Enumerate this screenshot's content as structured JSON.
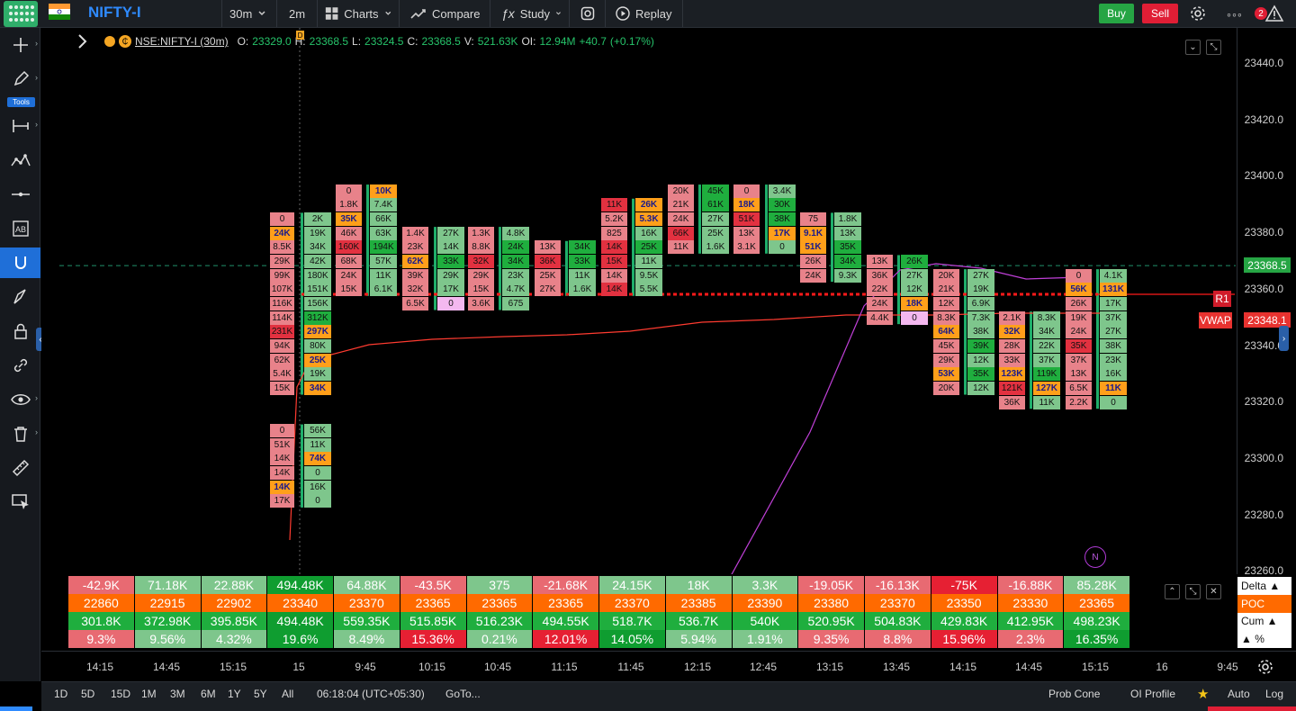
{
  "topbar": {
    "symbol": "NIFTY-I",
    "timeframe": "30m",
    "interval2": "2m",
    "charts_label": "Charts",
    "compare_label": "Compare",
    "study_label": "Study",
    "replay_label": "Replay",
    "buy_label": "Buy",
    "sell_label": "Sell",
    "alert_count": "2"
  },
  "leftbar": {
    "tools_label": "Tools"
  },
  "legend": {
    "symbol": "NSE:NIFTY-I (30m)",
    "o_label": "O:",
    "o_val": "23329.0",
    "h_label": "H:",
    "h_val": "23368.5",
    "l_label": "L:",
    "l_val": "23324.5",
    "c_label": "C:",
    "c_val": "23368.5",
    "v_label": "V:",
    "v_val": "521.63K",
    "oi_label": "OI:",
    "oi_val": "12.94M",
    "chg": "+40.7",
    "chg_pct": "(+0.17%)",
    "d_marker": "D"
  },
  "price_axis": {
    "ticks": [
      "23440.0",
      "23420.0",
      "23400.0",
      "23380.0",
      "23360.0",
      "23340.0",
      "23320.0",
      "23300.0",
      "23280.0",
      "23260.0"
    ],
    "last_price": "23368.5",
    "vwap_price": "23348.1",
    "vwap_label": "VWAP",
    "r1_label": "R1",
    "n_marker": "N",
    "colors": {
      "last": "#26a544",
      "vwap": "#e8322f",
      "up": "#26a544",
      "down": "#e8322f"
    }
  },
  "footprint": [
    {
      "lo": 23325,
      "cells": [
        [
          "0",
          "r"
        ],
        [
          "24K",
          "o"
        ],
        [
          "8.5K",
          "r"
        ],
        [
          "29K",
          "r"
        ],
        [
          "99K",
          "r"
        ],
        [
          "107K",
          "r"
        ],
        [
          "116K",
          "r"
        ],
        [
          "114K",
          "r"
        ],
        [
          "231K",
          "R"
        ],
        [
          "94K",
          "r"
        ],
        [
          "62K",
          "r"
        ],
        [
          "5.4K",
          "r"
        ],
        [
          "15K",
          "r"
        ]
      ]
    },
    {
      "lo": 23325,
      "cells": [
        [
          "2K",
          "g"
        ],
        [
          "19K",
          "g"
        ],
        [
          "34K",
          "g"
        ],
        [
          "42K",
          "g"
        ],
        [
          "180K",
          "g"
        ],
        [
          "151K",
          "g"
        ],
        [
          "156K",
          "g"
        ],
        [
          "312K",
          "G"
        ],
        [
          "297K",
          "o"
        ],
        [
          "80K",
          "g"
        ],
        [
          "25K",
          "o"
        ],
        [
          "19K",
          "g"
        ],
        [
          "34K",
          "o"
        ]
      ]
    },
    {
      "lo": 23285,
      "cells": [
        [
          "0",
          "r"
        ],
        [
          "51K",
          "r"
        ],
        [
          "14K",
          "r"
        ],
        [
          "14K",
          "r"
        ],
        [
          "14K",
          "o"
        ],
        [
          "17K",
          "r"
        ]
      ]
    },
    {
      "lo": 23285,
      "cells": [
        [
          "56K",
          "g"
        ],
        [
          "11K",
          "g"
        ],
        [
          "74K",
          "o"
        ],
        [
          "0",
          "g"
        ],
        [
          "16K",
          "g"
        ],
        [
          "0",
          "g"
        ]
      ]
    },
    {
      "lo": 23360,
      "cells": [
        [
          "0",
          "r"
        ],
        [
          "1.8K",
          "r"
        ],
        [
          "35K",
          "o"
        ],
        [
          "46K",
          "r"
        ],
        [
          "160K",
          "R"
        ],
        [
          "68K",
          "r"
        ],
        [
          "24K",
          "r"
        ],
        [
          "15K",
          "r"
        ]
      ]
    },
    {
      "lo": 23360,
      "cells": [
        [
          "10K",
          "o"
        ],
        [
          "7.4K",
          "g"
        ],
        [
          "66K",
          "g"
        ],
        [
          "63K",
          "g"
        ],
        [
          "194K",
          "G"
        ],
        [
          "57K",
          "g"
        ],
        [
          "11K",
          "g"
        ],
        [
          "6.1K",
          "g"
        ]
      ]
    },
    {
      "lo": 23355,
      "cells": [
        [
          "1.4K",
          "r"
        ],
        [
          "23K",
          "r"
        ],
        [
          "62K",
          "o"
        ],
        [
          "39K",
          "r"
        ],
        [
          "32K",
          "r"
        ],
        [
          "6.5K",
          "r"
        ]
      ]
    },
    {
      "lo": 23355,
      "cells": [
        [
          "27K",
          "g"
        ],
        [
          "14K",
          "g"
        ],
        [
          "33K",
          "G"
        ],
        [
          "29K",
          "g"
        ],
        [
          "17K",
          "g"
        ],
        [
          "0",
          "p"
        ]
      ]
    },
    {
      "lo": 23355,
      "cells": [
        [
          "1.3K",
          "r"
        ],
        [
          "8.8K",
          "r"
        ],
        [
          "32K",
          "R"
        ],
        [
          "29K",
          "r"
        ],
        [
          "15K",
          "r"
        ],
        [
          "3.6K",
          "r"
        ]
      ]
    },
    {
      "lo": 23355,
      "cells": [
        [
          "4.8K",
          "g"
        ],
        [
          "24K",
          "G"
        ],
        [
          "34K",
          "G"
        ],
        [
          "23K",
          "g"
        ],
        [
          "4.7K",
          "g"
        ],
        [
          "675",
          "g"
        ]
      ]
    },
    {
      "lo": 23360,
      "cells": [
        [
          "13K",
          "r"
        ],
        [
          "36K",
          "R"
        ],
        [
          "25K",
          "r"
        ],
        [
          "27K",
          "r"
        ]
      ]
    },
    {
      "lo": 23360,
      "cells": [
        [
          "34K",
          "G"
        ],
        [
          "33K",
          "G"
        ],
        [
          "11K",
          "g"
        ],
        [
          "1.6K",
          "g"
        ]
      ]
    },
    {
      "lo": 23360,
      "cells": [
        [
          "11K",
          "R"
        ],
        [
          "5.2K",
          "r"
        ],
        [
          "825",
          "r"
        ],
        [
          "14K",
          "R"
        ],
        [
          "15K",
          "R"
        ],
        [
          "14K",
          "r"
        ],
        [
          "14K",
          "R"
        ]
      ]
    },
    {
      "lo": 23360,
      "cells": [
        [
          "26K",
          "o"
        ],
        [
          "5.3K",
          "o"
        ],
        [
          "16K",
          "g"
        ],
        [
          "25K",
          "G"
        ],
        [
          "11K",
          "g"
        ],
        [
          "9.5K",
          "g"
        ],
        [
          "5.5K",
          "g"
        ]
      ]
    },
    {
      "lo": 23375,
      "cells": [
        [
          "20K",
          "r"
        ],
        [
          "21K",
          "r"
        ],
        [
          "24K",
          "r"
        ],
        [
          "66K",
          "R"
        ],
        [
          "11K",
          "r"
        ]
      ]
    },
    {
      "lo": 23375,
      "cells": [
        [
          "45K",
          "G"
        ],
        [
          "61K",
          "G"
        ],
        [
          "27K",
          "g"
        ],
        [
          "25K",
          "g"
        ],
        [
          "1.6K",
          "g"
        ]
      ]
    },
    {
      "lo": 23375,
      "cells": [
        [
          "0",
          "r"
        ],
        [
          "18K",
          "o"
        ],
        [
          "51K",
          "R"
        ],
        [
          "13K",
          "r"
        ],
        [
          "3.1K",
          "r"
        ]
      ]
    },
    {
      "lo": 23375,
      "cells": [
        [
          "3.4K",
          "g"
        ],
        [
          "30K",
          "G"
        ],
        [
          "38K",
          "G"
        ],
        [
          "17K",
          "o"
        ],
        [
          "0",
          "g"
        ]
      ]
    },
    {
      "lo": 23365,
      "cells": [
        [
          "75",
          "r"
        ],
        [
          "9.1K",
          "o"
        ],
        [
          "51K",
          "o"
        ],
        [
          "26K",
          "r"
        ],
        [
          "24K",
          "r"
        ]
      ]
    },
    {
      "lo": 23365,
      "cells": [
        [
          "1.8K",
          "g"
        ],
        [
          "13K",
          "g"
        ],
        [
          "35K",
          "G"
        ],
        [
          "34K",
          "G"
        ],
        [
          "9.3K",
          "g"
        ]
      ]
    },
    {
      "lo": 23350,
      "cells": [
        [
          "13K",
          "r"
        ],
        [
          "36K",
          "r"
        ],
        [
          "22K",
          "r"
        ],
        [
          "24K",
          "r"
        ],
        [
          "4.4K",
          "r"
        ]
      ]
    },
    {
      "lo": 23350,
      "cells": [
        [
          "26K",
          "G"
        ],
        [
          "27K",
          "g"
        ],
        [
          "12K",
          "g"
        ],
        [
          "18K",
          "o"
        ],
        [
          "0",
          "p"
        ]
      ]
    },
    {
      "lo": 23325,
      "cells": [
        [
          "20K",
          "r"
        ],
        [
          "21K",
          "r"
        ],
        [
          "12K",
          "r"
        ],
        [
          "8.3K",
          "r"
        ],
        [
          "64K",
          "o"
        ],
        [
          "45K",
          "r"
        ],
        [
          "29K",
          "r"
        ],
        [
          "53K",
          "o"
        ],
        [
          "20K",
          "r"
        ]
      ]
    },
    {
      "lo": 23325,
      "cells": [
        [
          "27K",
          "g"
        ],
        [
          "19K",
          "g"
        ],
        [
          "6.9K",
          "g"
        ],
        [
          "7.3K",
          "g"
        ],
        [
          "38K",
          "g"
        ],
        [
          "39K",
          "G"
        ],
        [
          "12K",
          "g"
        ],
        [
          "35K",
          "G"
        ],
        [
          "12K",
          "g"
        ]
      ]
    },
    {
      "lo": 23320,
      "cells": [
        [
          "2.1K",
          "r"
        ],
        [
          "32K",
          "o"
        ],
        [
          "28K",
          "r"
        ],
        [
          "33K",
          "r"
        ],
        [
          "123K",
          "o"
        ],
        [
          "121K",
          "R"
        ],
        [
          "36K",
          "r"
        ]
      ]
    },
    {
      "lo": 23320,
      "cells": [
        [
          "8.3K",
          "g"
        ],
        [
          "34K",
          "g"
        ],
        [
          "22K",
          "g"
        ],
        [
          "37K",
          "g"
        ],
        [
          "119K",
          "G"
        ],
        [
          "127K",
          "o"
        ],
        [
          "11K",
          "g"
        ]
      ]
    },
    {
      "lo": 23320,
      "cells": [
        [
          "0",
          "r"
        ],
        [
          "56K",
          "o"
        ],
        [
          "26K",
          "r"
        ],
        [
          "19K",
          "r"
        ],
        [
          "24K",
          "r"
        ],
        [
          "35K",
          "R"
        ],
        [
          "37K",
          "r"
        ],
        [
          "13K",
          "r"
        ],
        [
          "6.5K",
          "r"
        ],
        [
          "2.2K",
          "r"
        ]
      ]
    },
    {
      "lo": 23320,
      "cells": [
        [
          "4.1K",
          "g"
        ],
        [
          "131K",
          "o"
        ],
        [
          "17K",
          "g"
        ],
        [
          "37K",
          "g"
        ],
        [
          "27K",
          "g"
        ],
        [
          "38K",
          "g"
        ],
        [
          "23K",
          "g"
        ],
        [
          "16K",
          "g"
        ],
        [
          "11K",
          "o"
        ],
        [
          "0",
          "g"
        ]
      ]
    }
  ],
  "stats": {
    "delta": [
      "-42.9K",
      "71.18K",
      "22.88K",
      "494.48K",
      "64.88K",
      "-43.5K",
      "375",
      "-21.68K",
      "24.15K",
      "18K",
      "3.3K",
      "-19.05K",
      "-16.13K",
      "-75K",
      "-16.88K",
      "85.28K"
    ],
    "delta_color": [
      "r",
      "g",
      "g",
      "G",
      "g",
      "r",
      "g",
      "r",
      "g",
      "g",
      "g",
      "r",
      "r",
      "R",
      "r",
      "g"
    ],
    "poc": [
      "22860",
      "22915",
      "22902",
      "23340",
      "23370",
      "23365",
      "23365",
      "23365",
      "23370",
      "23385",
      "23390",
      "23380",
      "23370",
      "23350",
      "23330",
      "23365"
    ],
    "cum": [
      "301.8K",
      "372.98K",
      "395.85K",
      "494.48K",
      "559.35K",
      "515.85K",
      "516.23K",
      "494.55K",
      "518.7K",
      "536.7K",
      "540K",
      "520.95K",
      "504.83K",
      "429.83K",
      "412.95K",
      "498.23K"
    ],
    "pct": [
      "9.3%",
      "9.56%",
      "4.32%",
      "19.6%",
      "8.49%",
      "15.36%",
      "0.21%",
      "12.01%",
      "14.05%",
      "5.94%",
      "1.91%",
      "9.35%",
      "8.8%",
      "15.96%",
      "2.3%",
      "16.35%"
    ],
    "pct_color": [
      "r",
      "g",
      "g",
      "G",
      "g",
      "R",
      "g",
      "R",
      "G",
      "g",
      "g",
      "r",
      "r",
      "R",
      "r",
      "G"
    ],
    "labels": [
      "Delta ▲",
      "POC",
      "Cum ▲",
      "▲ %"
    ]
  },
  "time_axis": {
    "ticks": [
      "14:15",
      "14:45",
      "15:15",
      "15",
      "9:45",
      "10:15",
      "10:45",
      "11:15",
      "11:45",
      "12:15",
      "12:45",
      "13:15",
      "13:45",
      "14:15",
      "14:45",
      "15:15",
      "16",
      "9:45"
    ]
  },
  "bottombar": {
    "ranges": [
      "1D",
      "5D",
      "15D",
      "1M",
      "3M",
      "6M",
      "1Y",
      "5Y",
      "All"
    ],
    "clock": "06:18:04 (UTC+05:30)",
    "goto": "GoTo...",
    "prob_cone": "Prob Cone",
    "oi_profile": "OI Profile",
    "auto": "Auto",
    "log": "Log"
  }
}
